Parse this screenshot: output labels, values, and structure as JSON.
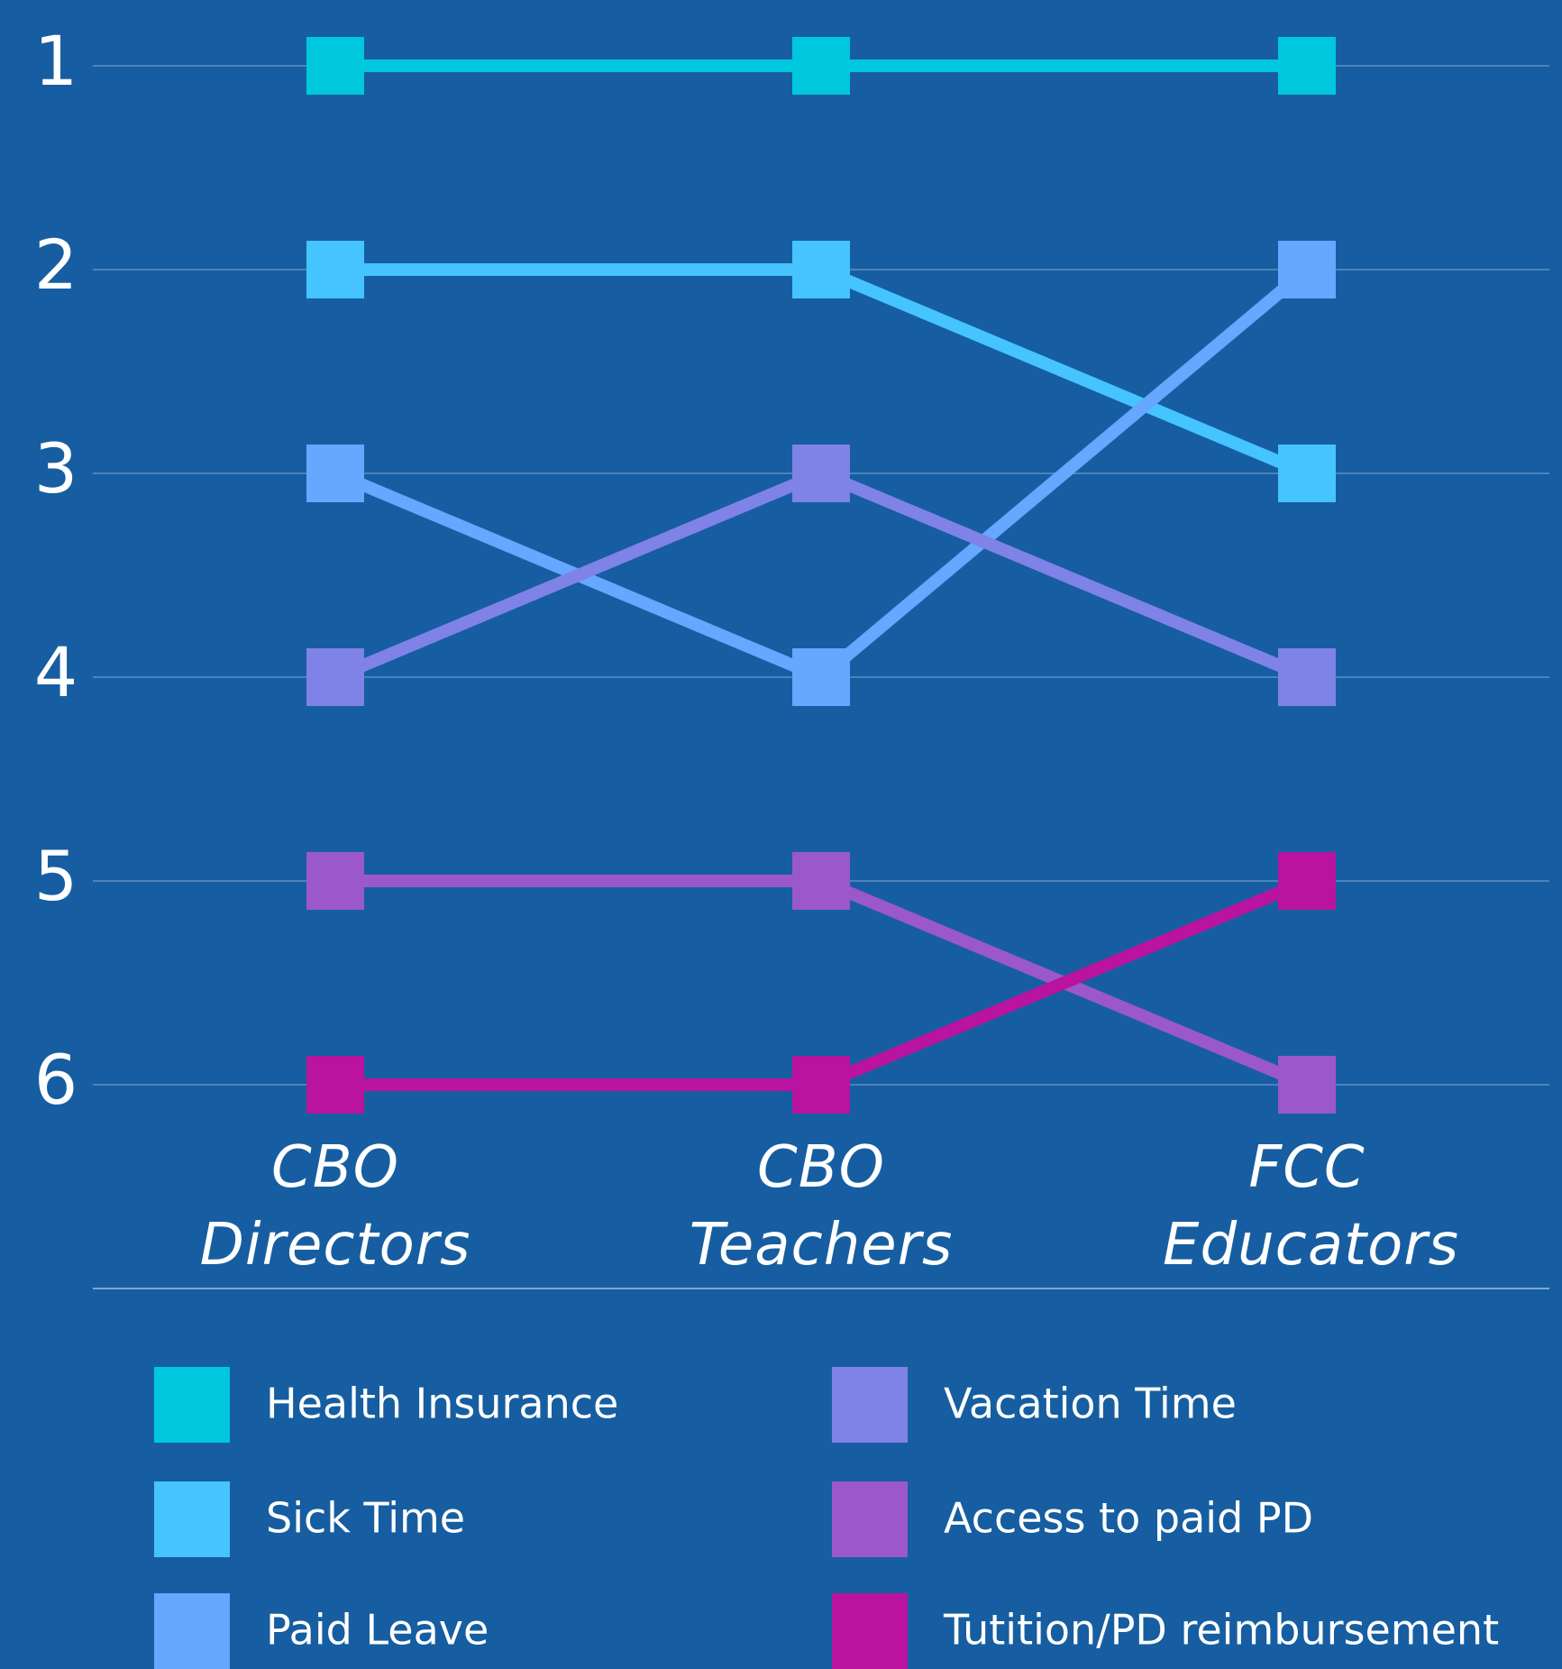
{
  "chart_data": {
    "type": "line",
    "categories": [
      "CBO Directors",
      "CBO Teachers",
      "FCC Educators"
    ],
    "series": [
      {
        "name": "Health Insurance",
        "color": "#00c8dc",
        "values": [
          1,
          1,
          1
        ]
      },
      {
        "name": "Sick Time",
        "color": "#45c4ff",
        "values": [
          2,
          2,
          3
        ]
      },
      {
        "name": "Paid Leave",
        "color": "#66a7ff",
        "values": [
          3,
          4,
          2
        ]
      },
      {
        "name": "Vacation Time",
        "color": "#7f82e6",
        "values": [
          4,
          3,
          4
        ]
      },
      {
        "name": "Access to paid PD",
        "color": "#9b58c9",
        "values": [
          5,
          5,
          6
        ]
      },
      {
        "name": "Tutition/PD reimbursement",
        "color": "#b9139f",
        "values": [
          6,
          6,
          5
        ]
      }
    ],
    "ylim": [
      1,
      6
    ],
    "yticks": [
      1,
      2,
      3,
      4,
      5,
      6
    ],
    "y_inverted": true,
    "grid": true,
    "marker": "square",
    "background": "#165ea1"
  }
}
